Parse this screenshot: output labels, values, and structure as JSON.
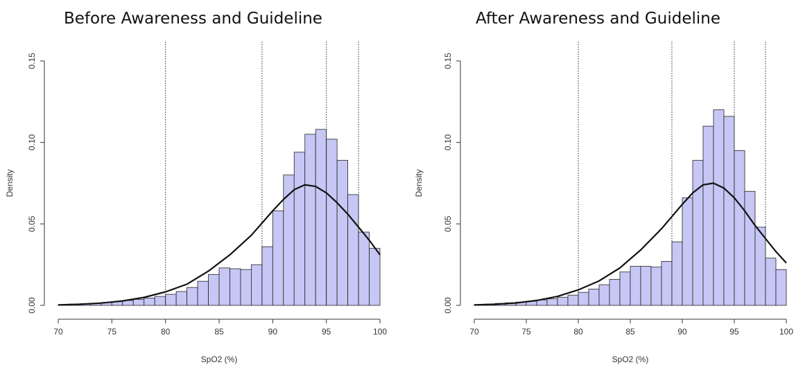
{
  "chart_data": [
    {
      "type": "bar",
      "title": "Before Awareness and Guideline",
      "xlabel": "SpO2 (%)",
      "ylabel": "Density",
      "xlim": [
        70,
        100
      ],
      "ylim": [
        0,
        0.15
      ],
      "xticks": [
        "70",
        "75",
        "80",
        "85",
        "90",
        "95",
        "100"
      ],
      "yticks": [
        "0.00",
        "0.05",
        "0.10",
        "0.15"
      ],
      "bar_color": "#c7c7f5",
      "vlines": [
        80,
        89,
        95,
        98
      ],
      "bins_start": 70,
      "bin_width": 1,
      "values": [
        0.0005,
        0.0008,
        0.001,
        0.0013,
        0.0018,
        0.0023,
        0.003,
        0.0037,
        0.0045,
        0.0055,
        0.0068,
        0.0085,
        0.011,
        0.0148,
        0.019,
        0.023,
        0.0225,
        0.022,
        0.025,
        0.036,
        0.058,
        0.08,
        0.094,
        0.105,
        0.108,
        0.102,
        0.089,
        0.068,
        0.045,
        0.035
      ],
      "curve": {
        "x": [
          70,
          72,
          74,
          76,
          78,
          80,
          82,
          84,
          86,
          88,
          90,
          91,
          92,
          93,
          94,
          95,
          96,
          97,
          98,
          99,
          100
        ],
        "y": [
          0.0003,
          0.0007,
          0.0014,
          0.0027,
          0.0049,
          0.0083,
          0.013,
          0.021,
          0.031,
          0.043,
          0.058,
          0.065,
          0.071,
          0.074,
          0.073,
          0.069,
          0.063,
          0.056,
          0.048,
          0.04,
          0.031
        ]
      }
    },
    {
      "type": "bar",
      "title": "After Awareness and Guideline",
      "xlabel": "SpO2 (%)",
      "ylabel": "Density",
      "xlim": [
        70,
        100
      ],
      "ylim": [
        0,
        0.15
      ],
      "xticks": [
        "70",
        "75",
        "80",
        "85",
        "90",
        "95",
        "100"
      ],
      "yticks": [
        "0.00",
        "0.05",
        "0.10",
        "0.15"
      ],
      "bar_color": "#c7c7f5",
      "vlines": [
        80,
        89,
        95,
        98
      ],
      "bins_start": 70,
      "bin_width": 1,
      "values": [
        0.0005,
        0.0008,
        0.0012,
        0.0016,
        0.002,
        0.0026,
        0.0033,
        0.004,
        0.005,
        0.0063,
        0.008,
        0.01,
        0.0127,
        0.016,
        0.0205,
        0.024,
        0.024,
        0.0235,
        0.027,
        0.039,
        0.066,
        0.089,
        0.11,
        0.12,
        0.116,
        0.095,
        0.07,
        0.048,
        0.029,
        0.022
      ],
      "curve": {
        "x": [
          70,
          72,
          74,
          76,
          78,
          80,
          82,
          84,
          86,
          88,
          90,
          91,
          92,
          93,
          94,
          95,
          96,
          97,
          98,
          99,
          100
        ],
        "y": [
          0.0003,
          0.0007,
          0.0015,
          0.003,
          0.0055,
          0.0095,
          0.015,
          0.023,
          0.034,
          0.047,
          0.062,
          0.069,
          0.074,
          0.075,
          0.072,
          0.066,
          0.058,
          0.049,
          0.041,
          0.033,
          0.026
        ]
      }
    }
  ]
}
